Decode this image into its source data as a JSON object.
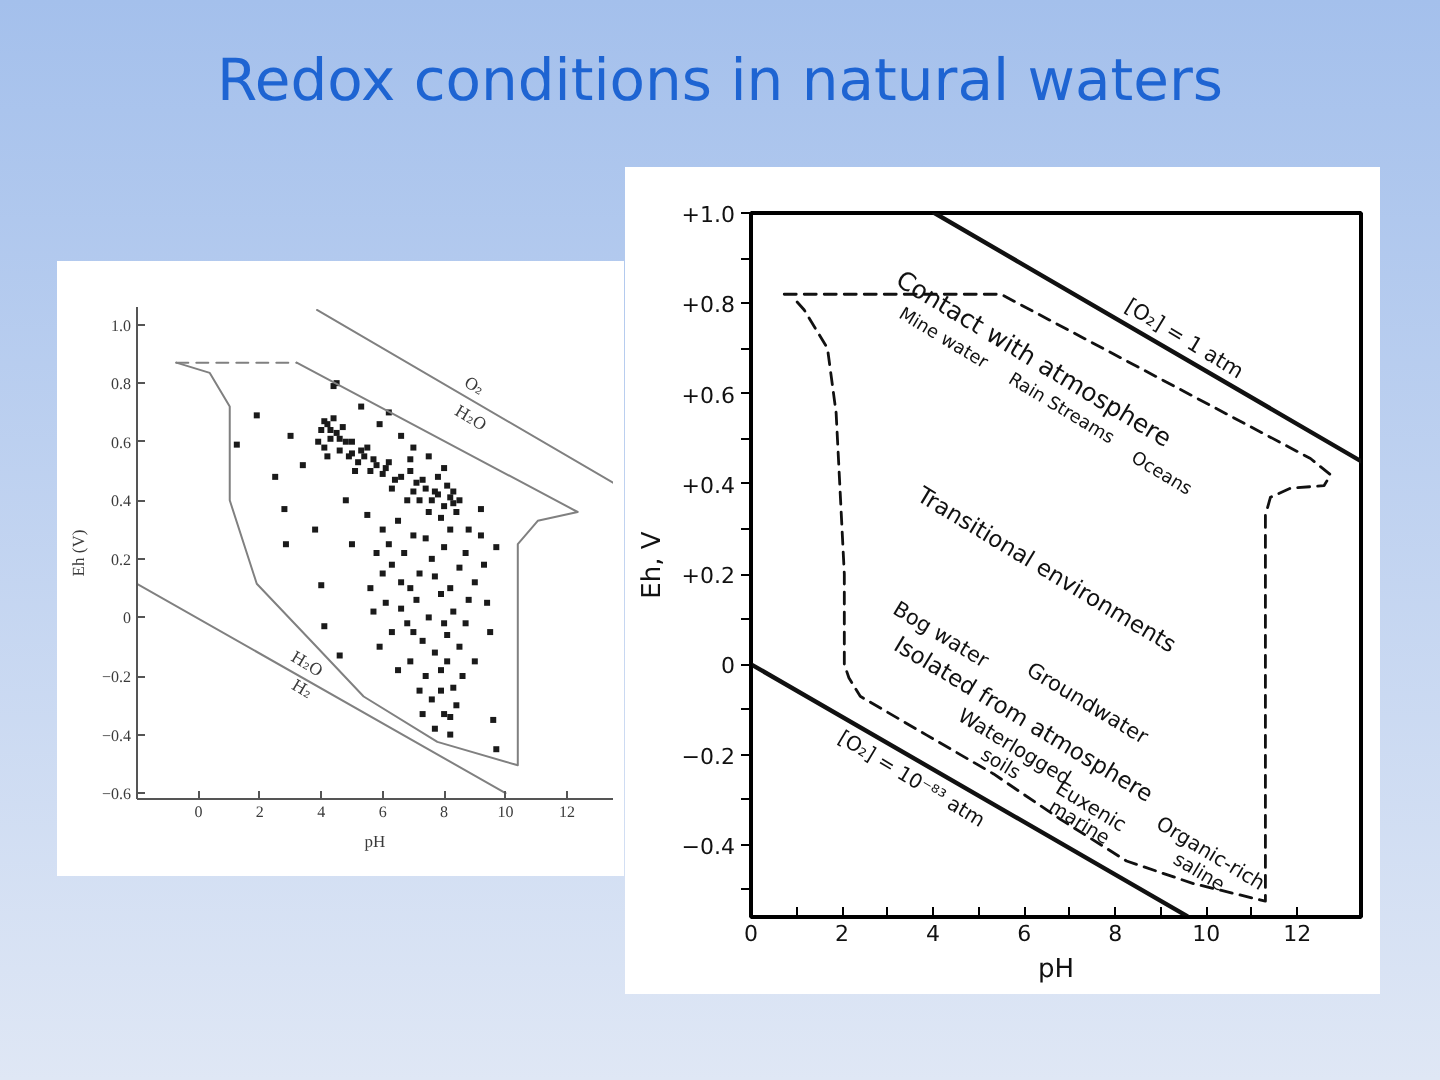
{
  "chart_data": [
    {
      "type": "scatter",
      "title": "Redox conditions in natural waters",
      "xlabel": "pH",
      "ylabel": "Eh (V)",
      "xlim": [
        -2,
        13.5
      ],
      "ylim": [
        -0.62,
        1.06
      ],
      "xticks": [
        0,
        2,
        4,
        6,
        8,
        10,
        12
      ],
      "yticks": [
        {
          "value": 1.0,
          "label": "1.0"
        },
        0.8,
        0.6,
        0.4,
        0.2,
        0,
        {
          "value": -0.2,
          "label": "−0.2"
        },
        {
          "value": -0.4,
          "label": "−0.4"
        },
        {
          "value": -0.6,
          "label": "−0.6"
        }
      ],
      "series": [
        {
          "color": "#1a1a1a",
          "marker": "square",
          "x": [
            4.0,
            4.2,
            4.3,
            4.1,
            4.5,
            4.6,
            4.4,
            4.8,
            4.9,
            4.2,
            3.9,
            4.7,
            5.0,
            5.2,
            5.4,
            5.6,
            5.8,
            6.0,
            6.2,
            5.5,
            6.4,
            5.1,
            4.4,
            5.3,
            5.9,
            6.6,
            7.0,
            7.5,
            6.2,
            8.0,
            6.9,
            7.3,
            7.4,
            7.6,
            7.8,
            8.0,
            8.2,
            8.4,
            7.9,
            8.1,
            7.5,
            8.3,
            7.0,
            6.8,
            5.5,
            6.0,
            6.5,
            7.0,
            8.8,
            9.2,
            5.8,
            6.3,
            6.7,
            7.2,
            7.6,
            8.0,
            8.5,
            9.0,
            5.6,
            6.1,
            6.6,
            7.1,
            7.5,
            7.9,
            8.3,
            8.7,
            6.3,
            6.8,
            7.3,
            7.7,
            8.1,
            8.5,
            6.9,
            7.4,
            7.9,
            8.3,
            7.6,
            8.0,
            8.4,
            7.7,
            8.2,
            5.9,
            6.5,
            9.0,
            1.9,
            1.25,
            2.8,
            2.85,
            4.0,
            4.1,
            4.6,
            9.5,
            9.6,
            9.7,
            9.7,
            9.2,
            4.5,
            3.4,
            3.0,
            2.5,
            5.0,
            4.8,
            3.8,
            9.4,
            4.3,
            4.6,
            5.3,
            5.7,
            6.1,
            6.6,
            7.1,
            7.7,
            8.3,
            8.5,
            7.2,
            6.3,
            5.0,
            4.1,
            6.9,
            7.8,
            6.2,
            7.4,
            8.2,
            6.9,
            7.7,
            8.2,
            6.0,
            7.0,
            8.0,
            8.8,
            7.2,
            8.1,
            7.9,
            8.6,
            7.3,
            8.2,
            5.7,
            6.6,
            8.7,
            9.3
          ],
          "values": [
            0.64,
            0.66,
            0.61,
            0.58,
            0.63,
            0.57,
            0.68,
            0.6,
            0.55,
            0.55,
            0.6,
            0.65,
            0.56,
            0.53,
            0.55,
            0.5,
            0.52,
            0.49,
            0.53,
            0.58,
            0.47,
            0.5,
            0.79,
            0.72,
            0.66,
            0.62,
            0.58,
            0.55,
            0.7,
            0.51,
            0.5,
            0.47,
            0.44,
            0.4,
            0.42,
            0.38,
            0.41,
            0.36,
            0.34,
            0.45,
            0.36,
            0.39,
            0.43,
            0.4,
            0.35,
            0.3,
            0.33,
            0.28,
            0.3,
            0.28,
            0.22,
            0.18,
            0.22,
            0.15,
            0.2,
            0.24,
            0.17,
            0.12,
            0.1,
            0.05,
            0.12,
            0.06,
            0.0,
            0.08,
            0.02,
            -0.02,
            -0.05,
            -0.02,
            -0.08,
            -0.12,
            -0.06,
            -0.1,
            -0.15,
            -0.2,
            -0.18,
            -0.24,
            -0.28,
            -0.33,
            -0.3,
            -0.38,
            -0.4,
            -0.1,
            -0.18,
            -0.15,
            0.69,
            0.59,
            0.37,
            0.25,
            0.11,
            -0.03,
            -0.13,
            -0.05,
            -0.35,
            -0.45,
            0.24,
            0.37,
            0.8,
            0.52,
            0.62,
            0.48,
            0.25,
            0.4,
            0.3,
            0.05,
            0.64,
            0.61,
            0.57,
            0.54,
            0.51,
            0.48,
            0.46,
            0.43,
            0.43,
            0.4,
            0.4,
            0.44,
            0.6,
            0.67,
            0.54,
            0.48,
            0.25,
            0.27,
            0.3,
            0.1,
            0.14,
            0.1,
            0.15,
            -0.05,
            -0.02,
            0.06,
            -0.25,
            -0.15,
            -0.25,
            -0.2,
            -0.33,
            -0.34,
            0.02,
            0.03,
            0.22,
            0.18
          ]
        },
        {
          "type": "line",
          "color": "#808080",
          "x": [
            3.86,
            13.5
          ],
          "values": [
            1.05,
            0.46
          ]
        },
        {
          "type": "line",
          "color": "#808080",
          "x": [
            -2,
            10
          ],
          "values": [
            0.115,
            -0.6
          ]
        },
        {
          "type": "line",
          "color": "#808080",
          "line_style": "dashed",
          "x": [
            -0.72,
            3.2
          ],
          "values": [
            0.87,
            0.87
          ]
        },
        {
          "type": "line",
          "color": "#808080",
          "x": [
            3.2,
            12.35,
            11.05,
            10.4,
            10.4,
            7.78,
            5.38,
            3.64,
            1.9,
            1.02,
            1.02,
            0.37,
            -0.72
          ],
          "values": [
            0.87,
            0.36,
            0.33,
            0.25,
            -0.505,
            -0.425,
            -0.27,
            -0.077,
            0.115,
            0.4,
            0.72,
            0.835,
            0.87
          ]
        }
      ],
      "annotations": [
        "O₂",
        "H₂O",
        "H₂O",
        "H₂"
      ]
    },
    {
      "type": "line",
      "xlabel": "pH",
      "ylabel": "Eh, V",
      "xlim": [
        0,
        13.4
      ],
      "ylim": [
        -0.56,
        1.0
      ],
      "xticks": [
        0,
        {
          "value": 1,
          "label": null
        },
        2,
        {
          "value": 3,
          "label": null
        },
        4,
        {
          "value": 5,
          "label": null
        },
        6,
        {
          "value": 7,
          "label": null
        },
        8,
        {
          "value": 9,
          "label": null
        },
        10,
        {
          "value": 11,
          "label": null
        },
        12
      ],
      "yticks": [
        {
          "value": 1.0,
          "label": "+1.0"
        },
        {
          "value": 0.9,
          "label": null
        },
        {
          "value": 0.8,
          "label": "+0.8"
        },
        {
          "value": 0.7,
          "label": null
        },
        {
          "value": 0.6,
          "label": "+0.6"
        },
        {
          "value": 0.5,
          "label": null
        },
        {
          "value": 0.4,
          "label": "+0.4"
        },
        {
          "value": 0.3,
          "label": null
        },
        {
          "value": 0.2,
          "label": "+0.2"
        },
        {
          "value": 0.1,
          "label": null
        },
        0,
        {
          "value": -0.1,
          "label": null
        },
        {
          "value": -0.2,
          "label": "−0.2"
        },
        {
          "value": -0.3,
          "label": null
        },
        {
          "value": -0.4,
          "label": "−0.4"
        },
        {
          "value": -0.5,
          "label": null
        }
      ],
      "series": [
        {
          "color": "#111111",
          "x": [
            4.03,
            13.4
          ],
          "values": [
            1.0,
            0.45
          ]
        },
        {
          "color": "#111111",
          "x": [
            0,
            9.58
          ],
          "values": [
            0,
            -0.558
          ]
        },
        {
          "color": "#111111",
          "line_style": "dashed",
          "x": [
            0.73,
            5.49,
            12.29,
            12.73,
            12.59,
            11.85,
            11.41,
            11.3,
            11.3,
            11.18,
            9.72,
            8.25,
            6.79,
            5.33,
            3.86,
            2.4,
            2.15,
            2.05,
            2.05,
            1.87,
            1.68,
            1.17,
            0.95
          ],
          "values": [
            0.82,
            0.82,
            0.456,
            0.42,
            0.396,
            0.39,
            0.37,
            0.33,
            -0.525,
            -0.522,
            -0.486,
            -0.436,
            -0.343,
            -0.243,
            -0.157,
            -0.071,
            -0.03,
            0.0,
            0.2,
            0.557,
            0.7,
            0.785,
            0.81
          ]
        }
      ],
      "annotations": [
        "[O₂] = 1 atm",
        "Contact with atmosphere",
        "Mine water",
        "Rain Streams",
        "Oceans",
        "Transitional environments",
        "Bog water",
        "Isolated from atmosphere",
        "Groundwater",
        "Waterlogged",
        "soils",
        "Euxenic",
        "marine",
        "Organic-rich",
        "saline",
        "[O₂] = 10⁻⁸³ atm"
      ]
    }
  ]
}
